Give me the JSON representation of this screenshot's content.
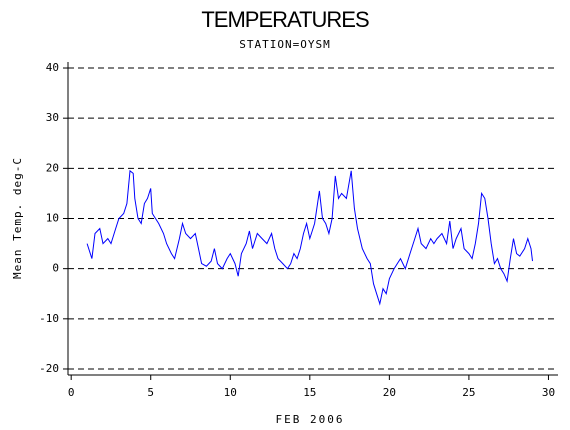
{
  "chart_data": {
    "type": "line",
    "title": "TEMPERATURES",
    "subtitle": "STATION=OYSM",
    "x_label": "FEB 2006",
    "y_label": "Mean Temp. deg-C",
    "xlim": [
      -0.2,
      30.6
    ],
    "ylim": [
      -21.2,
      41.2
    ],
    "xticks": [
      0,
      5,
      10,
      15,
      20,
      25,
      30
    ],
    "yticks": [
      -20,
      -10,
      0,
      10,
      20,
      30,
      40
    ],
    "grid": true,
    "series": [
      {
        "name": "Mean Temp",
        "color": "#0000ff",
        "x": [
          1,
          1.3,
          1.5,
          1.8,
          2,
          2.3,
          2.5,
          2.8,
          3,
          3.3,
          3.5,
          3.7,
          3.9,
          4,
          4.2,
          4.4,
          4.6,
          4.8,
          5,
          5.1,
          5.3,
          5.5,
          5.8,
          6,
          6.3,
          6.5,
          6.8,
          7,
          7.2,
          7.5,
          7.8,
          8,
          8.2,
          8.5,
          8.8,
          9,
          9.2,
          9.5,
          9.8,
          10,
          10.3,
          10.5,
          10.7,
          11,
          11.2,
          11.4,
          11.7,
          12,
          12.3,
          12.6,
          12.8,
          13,
          13.3,
          13.6,
          13.8,
          14,
          14.2,
          14.4,
          14.6,
          14.8,
          15,
          15.3,
          15.6,
          15.8,
          16,
          16.2,
          16.4,
          16.6,
          16.8,
          17,
          17.3,
          17.6,
          17.8,
          18,
          18.3,
          18.6,
          18.8,
          19,
          19.2,
          19.4,
          19.6,
          19.8,
          20,
          20.3,
          20.5,
          20.7,
          21,
          21.3,
          21.6,
          21.8,
          22,
          22.3,
          22.6,
          22.8,
          23,
          23.3,
          23.6,
          23.8,
          24,
          24.2,
          24.5,
          24.7,
          25,
          25.2,
          25.4,
          25.6,
          25.8,
          26,
          26.2,
          26.4,
          26.6,
          26.8,
          27,
          27.2,
          27.4,
          27.6,
          27.8,
          28,
          28.2,
          28.5,
          28.7,
          28.9,
          29
        ],
        "values": [
          5,
          2,
          7,
          8,
          5,
          6,
          5,
          8,
          10,
          11,
          13,
          19.5,
          19,
          14,
          10,
          9,
          13,
          14,
          16,
          11,
          10,
          9,
          7,
          5,
          3,
          2,
          6,
          9,
          7,
          6,
          7,
          4,
          1,
          0.5,
          1.5,
          4,
          1,
          0,
          2,
          3,
          1,
          -1.5,
          3,
          5,
          7.5,
          4,
          7,
          6,
          5,
          7,
          4,
          2,
          1,
          0,
          1,
          3,
          2,
          4,
          7,
          9,
          6,
          9,
          15.5,
          10,
          9,
          7,
          10,
          18.5,
          14,
          15,
          14,
          19.5,
          12,
          8,
          4,
          2,
          1,
          -3,
          -5,
          -7,
          -4,
          -5,
          -2,
          0,
          1,
          2,
          0,
          3,
          6,
          8,
          5,
          4,
          6,
          5,
          6,
          7,
          5,
          9.5,
          4,
          6,
          8,
          4,
          3,
          2,
          5,
          9,
          15,
          14,
          10,
          5,
          1,
          2,
          0,
          -1,
          -2.5,
          2,
          6,
          3,
          2.5,
          4,
          6,
          4,
          1.5
        ]
      }
    ]
  }
}
